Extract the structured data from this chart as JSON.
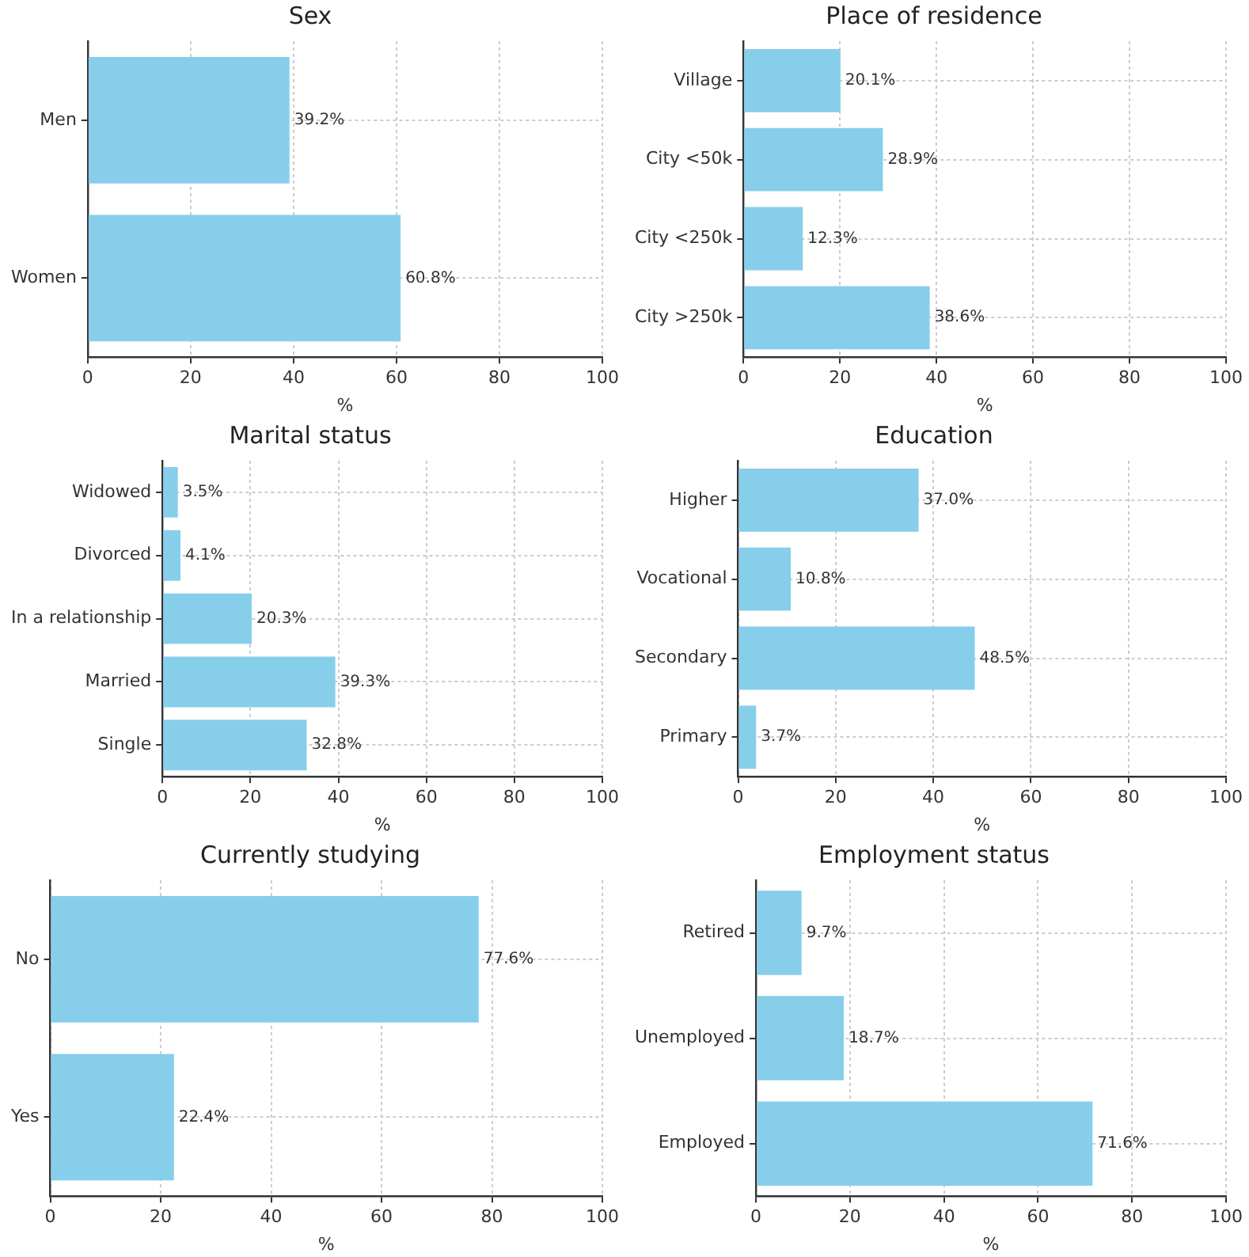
{
  "chart_data": [
    {
      "type": "bar",
      "orientation": "horizontal",
      "title": "Sex",
      "xlabel": "%",
      "categories": [
        "Men",
        "Women"
      ],
      "values": [
        39.2,
        60.8
      ],
      "value_labels": [
        "39.2%",
        "60.8%"
      ],
      "color": "#87ceeb",
      "xlim": [
        0,
        100
      ],
      "xticks": [
        0,
        20,
        40,
        60,
        80,
        100
      ],
      "grid": true,
      "legend": false
    },
    {
      "type": "bar",
      "orientation": "horizontal",
      "title": "Place of residence",
      "xlabel": "%",
      "categories": [
        "Village",
        "City <50k",
        "City <250k",
        "City >250k"
      ],
      "values": [
        20.1,
        28.9,
        12.3,
        38.6
      ],
      "value_labels": [
        "20.1%",
        "28.9%",
        "12.3%",
        "38.6%"
      ],
      "color": "#87ceeb",
      "xlim": [
        0,
        100
      ],
      "xticks": [
        0,
        20,
        40,
        60,
        80,
        100
      ],
      "grid": true,
      "legend": false
    },
    {
      "type": "bar",
      "orientation": "horizontal",
      "title": "Marital status",
      "xlabel": "%",
      "categories": [
        "Widowed",
        "Divorced",
        "In a relationship",
        "Married",
        "Single"
      ],
      "values": [
        3.5,
        4.1,
        20.3,
        39.3,
        32.8
      ],
      "value_labels": [
        "3.5%",
        "4.1%",
        "20.3%",
        "39.3%",
        "32.8%"
      ],
      "color": "#87ceeb",
      "xlim": [
        0,
        100
      ],
      "xticks": [
        0,
        20,
        40,
        60,
        80,
        100
      ],
      "grid": true,
      "legend": false
    },
    {
      "type": "bar",
      "orientation": "horizontal",
      "title": "Education",
      "xlabel": "%",
      "categories": [
        "Higher",
        "Vocational",
        "Secondary",
        "Primary"
      ],
      "values": [
        37.0,
        10.8,
        48.5,
        3.7
      ],
      "value_labels": [
        "37.0%",
        "10.8%",
        "48.5%",
        "3.7%"
      ],
      "color": "#87ceeb",
      "xlim": [
        0,
        100
      ],
      "xticks": [
        0,
        20,
        40,
        60,
        80,
        100
      ],
      "grid": true,
      "legend": false
    },
    {
      "type": "bar",
      "orientation": "horizontal",
      "title": "Currently studying",
      "xlabel": "%",
      "categories": [
        "No",
        "Yes"
      ],
      "values": [
        77.6,
        22.4
      ],
      "value_labels": [
        "77.6%",
        "22.4%"
      ],
      "color": "#87ceeb",
      "xlim": [
        0,
        100
      ],
      "xticks": [
        0,
        20,
        40,
        60,
        80,
        100
      ],
      "grid": true,
      "legend": false
    },
    {
      "type": "bar",
      "orientation": "horizontal",
      "title": "Employment status",
      "xlabel": "%",
      "categories": [
        "Retired",
        "Unemployed",
        "Employed"
      ],
      "values": [
        9.7,
        18.7,
        71.6
      ],
      "value_labels": [
        "9.7%",
        "18.7%",
        "71.6%"
      ],
      "color": "#87ceeb",
      "xlim": [
        0,
        100
      ],
      "xticks": [
        0,
        20,
        40,
        60,
        80,
        100
      ],
      "grid": true,
      "legend": false
    }
  ]
}
